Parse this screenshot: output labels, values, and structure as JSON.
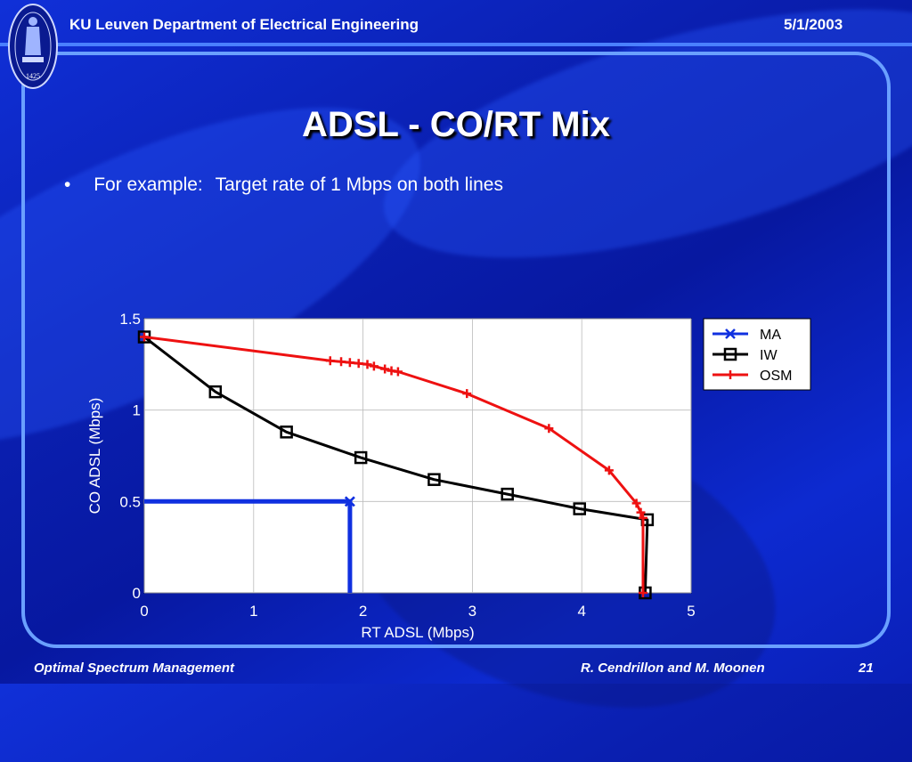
{
  "header": {
    "org": "KU Leuven Department of Electrical Engineering",
    "date": "5/1/2003"
  },
  "logo": {
    "text": "1425"
  },
  "slide": {
    "title": "ADSL - CO/RT Mix",
    "bullet_marker": "•",
    "bullet_lead": "For example:",
    "bullet_text": "Target rate of 1 Mbps on both lines"
  },
  "footer": {
    "left": "Optimal Spectrum Management",
    "author": "R. Cendrillon and M. Moonen",
    "page": "21"
  },
  "colors": {
    "MA": "#1030e0",
    "IW": "#000000",
    "OSM": "#ee1111"
  },
  "chart_data": {
    "type": "line",
    "xlabel": "RT ADSL (Mbps)",
    "ylabel": "CO ADSL (Mbps)",
    "xlim": [
      0,
      5
    ],
    "ylim": [
      0,
      1.5
    ],
    "xticks": [
      "0",
      "1",
      "2",
      "3",
      "4",
      "5"
    ],
    "yticks": [
      "0",
      "0.5",
      "1",
      "1.5"
    ],
    "grid": true,
    "legend_position": "outside-right",
    "series": [
      {
        "name": "MA",
        "marker": "x",
        "x": [
          0,
          1.88,
          1.88,
          1.88
        ],
        "y": [
          0.5,
          0.5,
          0.5,
          0
        ]
      },
      {
        "name": "IW",
        "marker": "square",
        "x": [
          0,
          0.65,
          1.3,
          1.98,
          2.65,
          3.32,
          3.98,
          4.6,
          4.58
        ],
        "y": [
          1.4,
          1.1,
          0.88,
          0.74,
          0.62,
          0.54,
          0.46,
          0.4,
          0
        ]
      },
      {
        "name": "OSM",
        "marker": "+",
        "x": [
          0,
          1.7,
          1.8,
          1.88,
          1.96,
          2.04,
          2.1,
          2.2,
          2.26,
          2.32,
          2.95,
          3.7,
          4.25,
          4.5,
          4.54,
          4.56,
          4.56
        ],
        "y": [
          1.4,
          1.27,
          1.265,
          1.26,
          1.255,
          1.25,
          1.24,
          1.225,
          1.215,
          1.21,
          1.09,
          0.9,
          0.67,
          0.49,
          0.44,
          0.41,
          0
        ]
      }
    ]
  }
}
